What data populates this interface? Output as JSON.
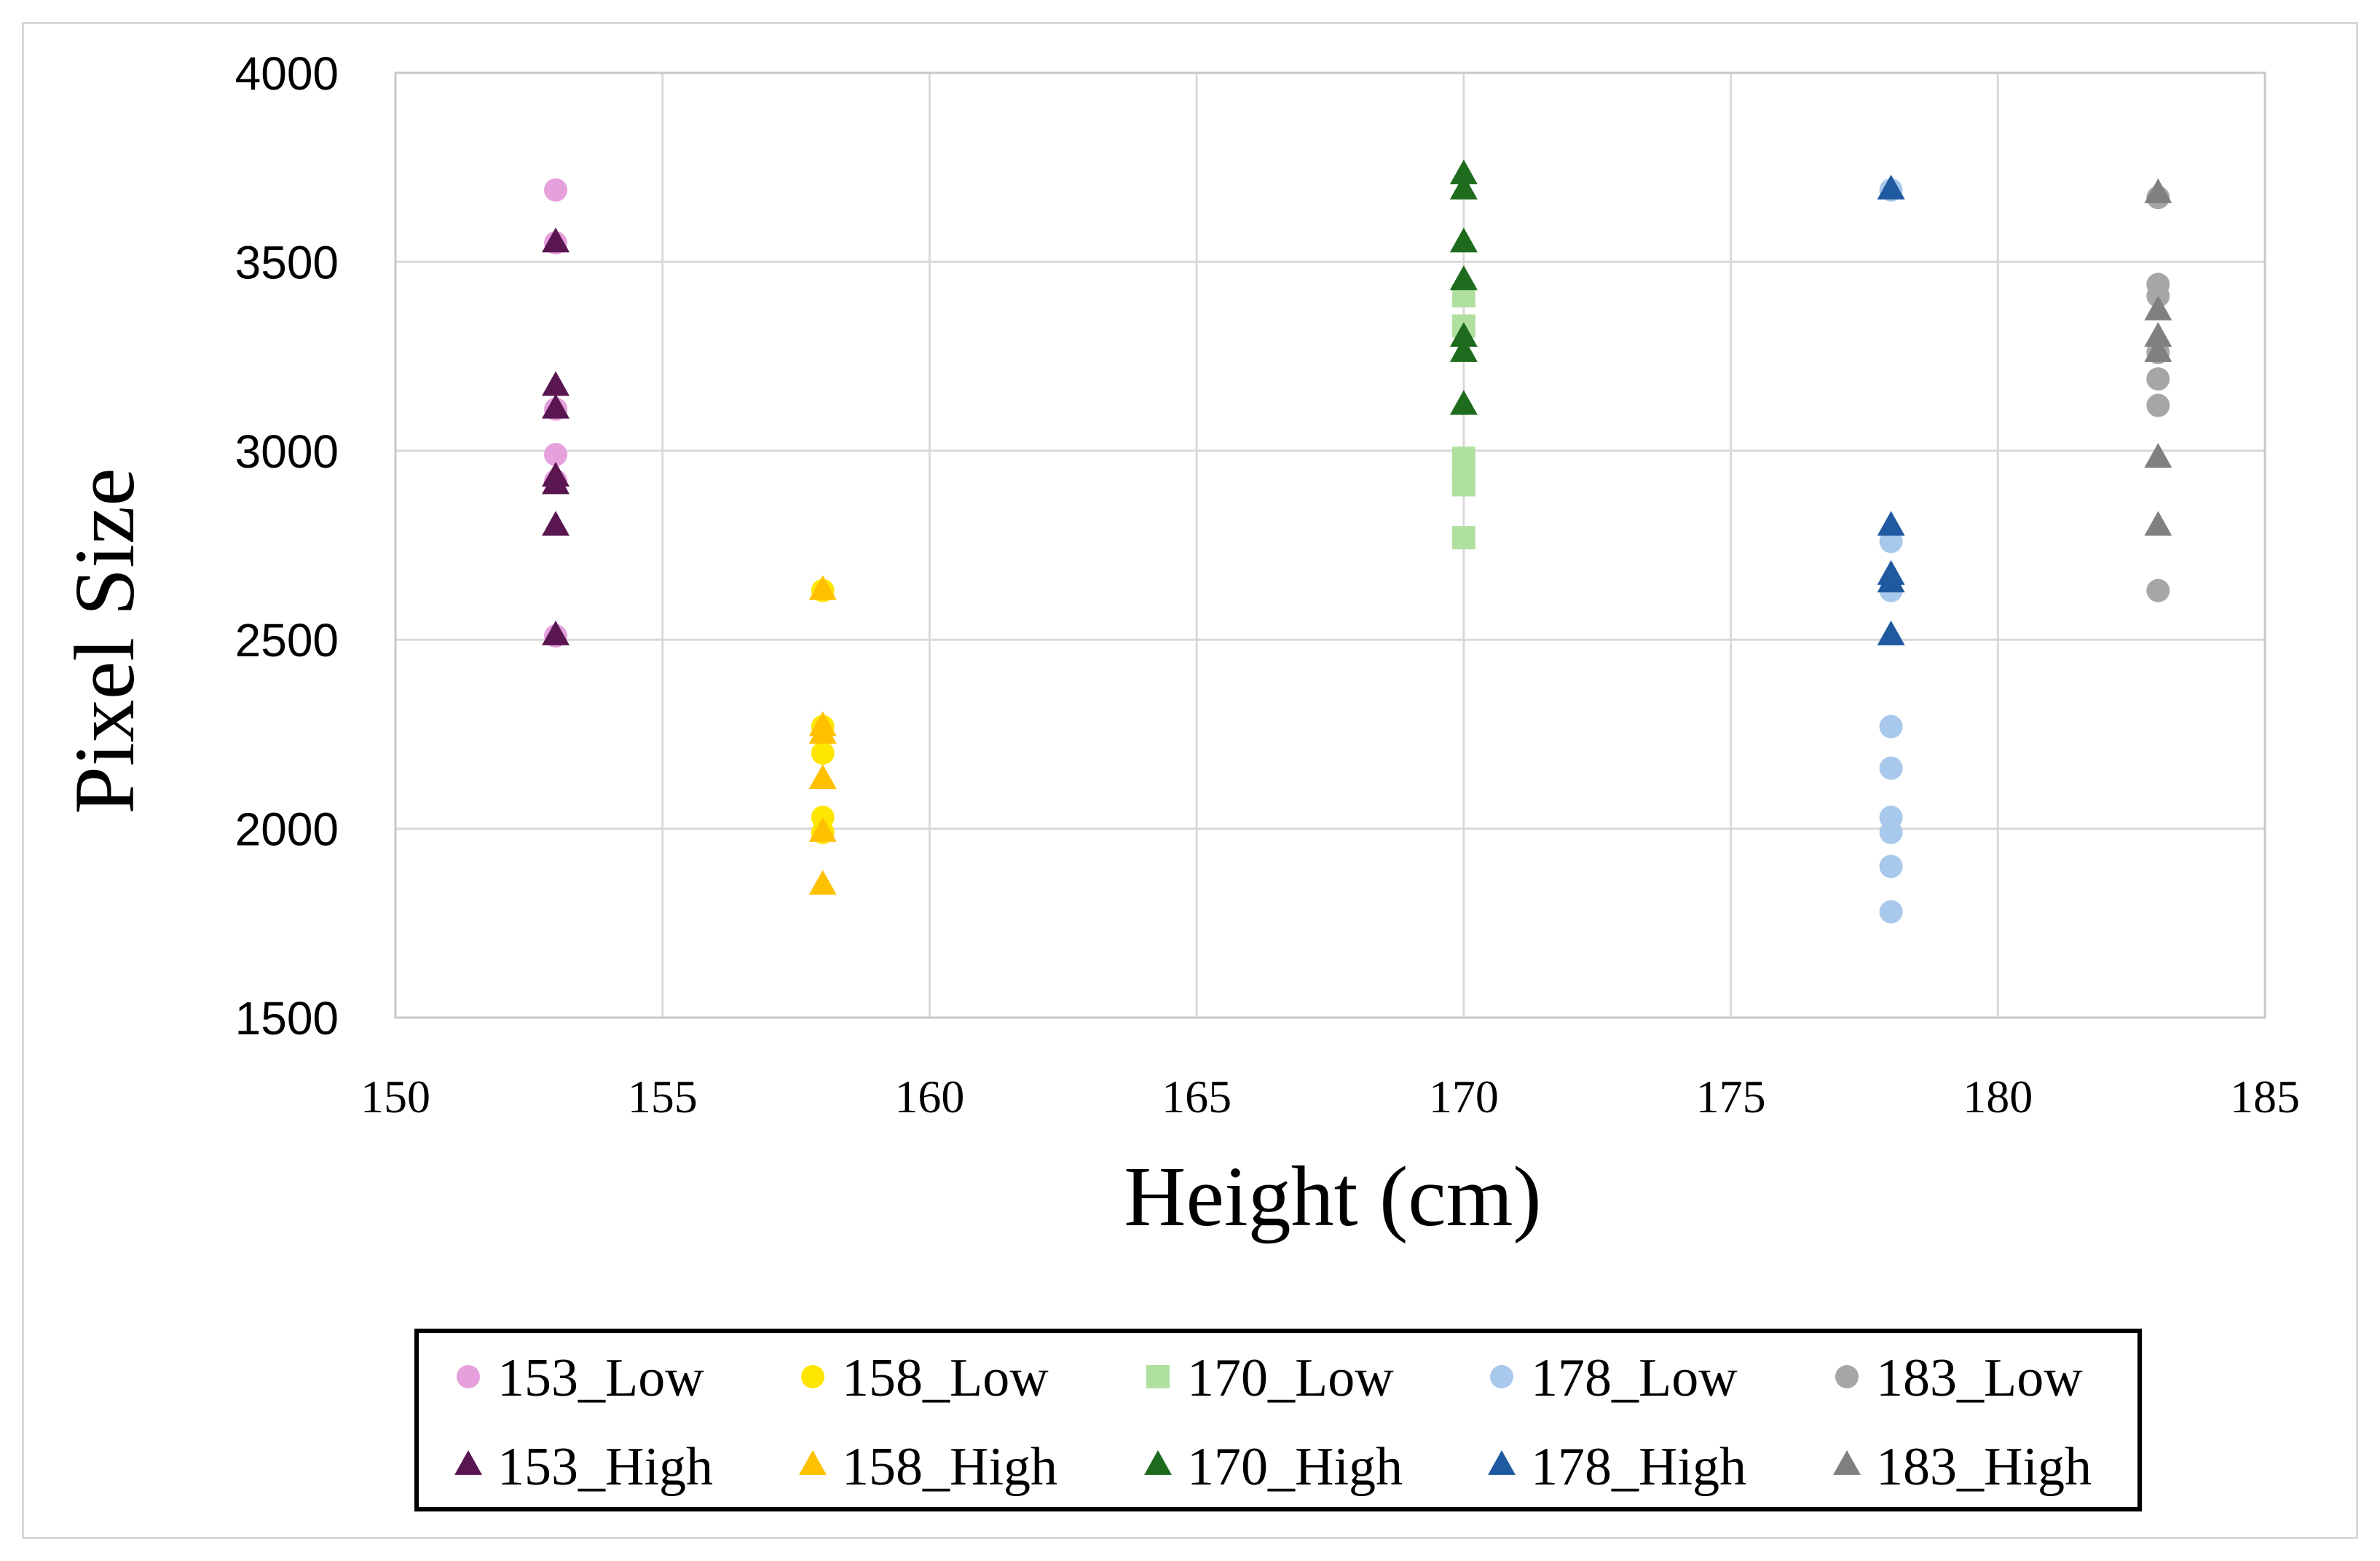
{
  "chart_data": {
    "type": "scatter",
    "title": "",
    "xlabel": "Height (cm)",
    "ylabel": "Pixel Size",
    "xlim": [
      150,
      185
    ],
    "ylim": [
      1500,
      4000
    ],
    "xticks": [
      150,
      155,
      160,
      165,
      170,
      175,
      180,
      185
    ],
    "yticks": [
      1500,
      2000,
      2500,
      3000,
      3500,
      4000
    ],
    "grid": true,
    "legend_position": "bottom",
    "series": [
      {
        "name": "153_Low",
        "marker": "circle",
        "color": "#e6a0dc",
        "x": [
          153,
          153,
          153,
          153,
          153,
          153
        ],
        "y": [
          3690,
          3550,
          3110,
          2990,
          2920,
          2510
        ]
      },
      {
        "name": "158_Low",
        "marker": "circle",
        "color": "#ffe600",
        "x": [
          158,
          158,
          158,
          158,
          158
        ],
        "y": [
          2630,
          2270,
          2200,
          2030,
          1990
        ]
      },
      {
        "name": "170_Low",
        "marker": "square",
        "color": "#b0e0a0",
        "x": [
          170,
          170,
          170,
          170,
          170,
          170,
          170
        ],
        "y": [
          3410,
          3330,
          2980,
          2950,
          2920,
          2910,
          2770
        ]
      },
      {
        "name": "178_Low",
        "marker": "circle",
        "color": "#a8c8ec",
        "x": [
          178,
          178,
          178,
          178,
          178,
          178,
          178,
          178,
          178
        ],
        "y": [
          3690,
          2760,
          2630,
          2270,
          2160,
          2030,
          1990,
          1900,
          1780
        ]
      },
      {
        "name": "183_Low",
        "marker": "circle",
        "color": "#a6a6a6",
        "x": [
          183,
          183,
          183,
          183,
          183,
          183,
          183
        ],
        "y": [
          3670,
          3440,
          3410,
          3260,
          3190,
          3120,
          2630
        ]
      },
      {
        "name": "153_High",
        "marker": "triangle",
        "color": "#5a1650",
        "x": [
          153,
          153,
          153,
          153,
          153,
          153,
          153
        ],
        "y": [
          3550,
          3170,
          3110,
          2930,
          2910,
          2800,
          2510
        ]
      },
      {
        "name": "158_High",
        "marker": "triangle",
        "color": "#ffc000",
        "x": [
          158,
          158,
          158,
          158,
          158,
          158
        ],
        "y": [
          2630,
          2270,
          2250,
          2130,
          1990,
          1850
        ]
      },
      {
        "name": "170_High",
        "marker": "triangle",
        "color": "#1e6b1e",
        "x": [
          170,
          170,
          170,
          170,
          170,
          170,
          170
        ],
        "y": [
          3730,
          3690,
          3550,
          3450,
          3300,
          3260,
          3120
        ]
      },
      {
        "name": "178_High",
        "marker": "triangle",
        "color": "#1f5aa0",
        "x": [
          178,
          178,
          178,
          178,
          178
        ],
        "y": [
          3690,
          2800,
          2670,
          2650,
          2510
        ]
      },
      {
        "name": "183_High",
        "marker": "triangle",
        "color": "#808080",
        "x": [
          183,
          183,
          183,
          183,
          183,
          183
        ],
        "y": [
          3680,
          3370,
          3300,
          3260,
          2980,
          2800
        ]
      }
    ]
  }
}
